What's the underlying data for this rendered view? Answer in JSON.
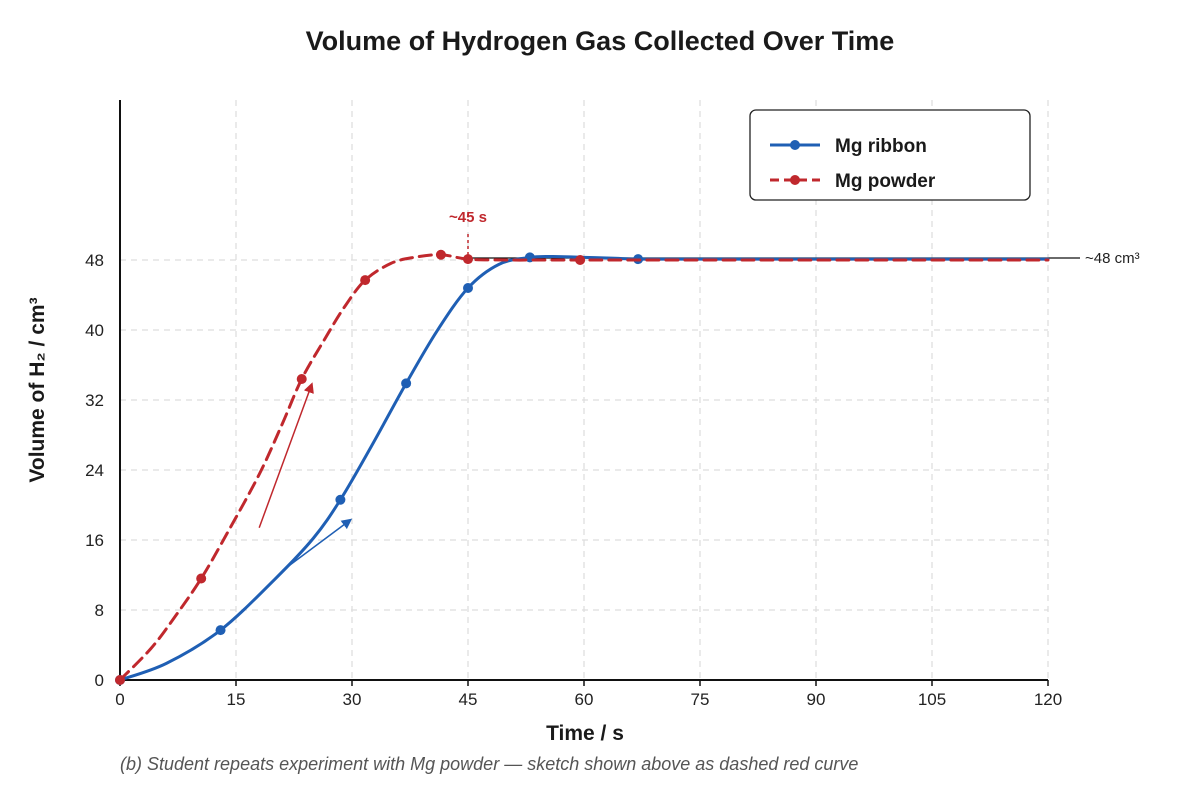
{
  "chart_data": {
    "type": "line",
    "title": "Volume of Hydrogen Gas Collected Over Time",
    "xlabel": "Time / s",
    "ylabel": "Volume of H₂ / cm³",
    "xlim": [
      0,
      120
    ],
    "ylim": [
      0,
      48
    ],
    "xticks": [
      0,
      15,
      30,
      45,
      60,
      75,
      90,
      105,
      120
    ],
    "yticks": [
      0,
      8,
      16,
      24,
      32,
      40,
      48
    ],
    "grid": true,
    "legend_position": "top-right",
    "series": [
      {
        "name": "Mg ribbon",
        "color": "#1f5fb4",
        "style": "solid",
        "curve": [
          [
            0,
            0
          ],
          [
            6,
            1.9
          ],
          [
            13,
            5.7
          ],
          [
            20,
            11.5
          ],
          [
            25,
            16.2
          ],
          [
            28.5,
            20.6
          ],
          [
            32.5,
            26.7
          ],
          [
            37,
            33.9
          ],
          [
            41,
            39.9
          ],
          [
            45,
            44.8
          ],
          [
            49,
            47.5
          ],
          [
            53,
            48.3
          ],
          [
            56,
            48.4
          ],
          [
            60,
            48.3
          ],
          [
            64,
            48.2
          ],
          [
            67,
            48.1
          ],
          [
            75,
            48.1
          ],
          [
            90,
            48.1
          ],
          [
            105,
            48.1
          ],
          [
            120,
            48.1
          ]
        ],
        "markers": [
          [
            0,
            0
          ],
          [
            13,
            5.7
          ],
          [
            28.5,
            20.6
          ],
          [
            37,
            33.9
          ],
          [
            45,
            44.8
          ],
          [
            53,
            48.3
          ],
          [
            67,
            48.1
          ]
        ]
      },
      {
        "name": "Mg powder",
        "color": "#c0282d",
        "style": "dashed",
        "curve": [
          [
            0,
            0
          ],
          [
            4,
            3.6
          ],
          [
            7,
            7.1
          ],
          [
            10.5,
            11.6
          ],
          [
            14,
            17.0
          ],
          [
            18,
            23.5
          ],
          [
            21,
            29.3
          ],
          [
            23.5,
            34.4
          ],
          [
            26.5,
            39.0
          ],
          [
            29,
            42.6
          ],
          [
            31.7,
            45.7
          ],
          [
            35,
            47.6
          ],
          [
            38,
            48.3
          ],
          [
            41.5,
            48.6
          ],
          [
            45,
            48.1
          ],
          [
            50,
            48.0
          ],
          [
            55,
            48.0
          ],
          [
            59.5,
            48.0
          ],
          [
            75,
            48.0
          ],
          [
            90,
            48.0
          ],
          [
            105,
            48.0
          ],
          [
            120,
            48.0
          ]
        ],
        "markers": [
          [
            0,
            0
          ],
          [
            10.5,
            11.6
          ],
          [
            23.5,
            34.4
          ],
          [
            31.7,
            45.7
          ],
          [
            41.5,
            48.6
          ],
          [
            45,
            48.1
          ],
          [
            59.5,
            48.0
          ]
        ]
      }
    ],
    "annotations": {
      "plateau_label": "~48 cm³",
      "time_label": "~45 s",
      "time_marker_x": 45,
      "time_marker_y": 48.1,
      "plateau_y": 48,
      "powder_gradient_arrow": {
        "from": [
          18,
          17.4
        ],
        "to": [
          24.8,
          33.8
        ],
        "color": "#c0282d"
      },
      "ribbon_gradient_arrow": {
        "from": [
          21,
          12.5
        ],
        "to": [
          29.8,
          18.3
        ],
        "color": "#1f5fb4"
      }
    },
    "caption": "(b) Student repeats experiment with Mg powder — sketch shown above as dashed red curve"
  }
}
